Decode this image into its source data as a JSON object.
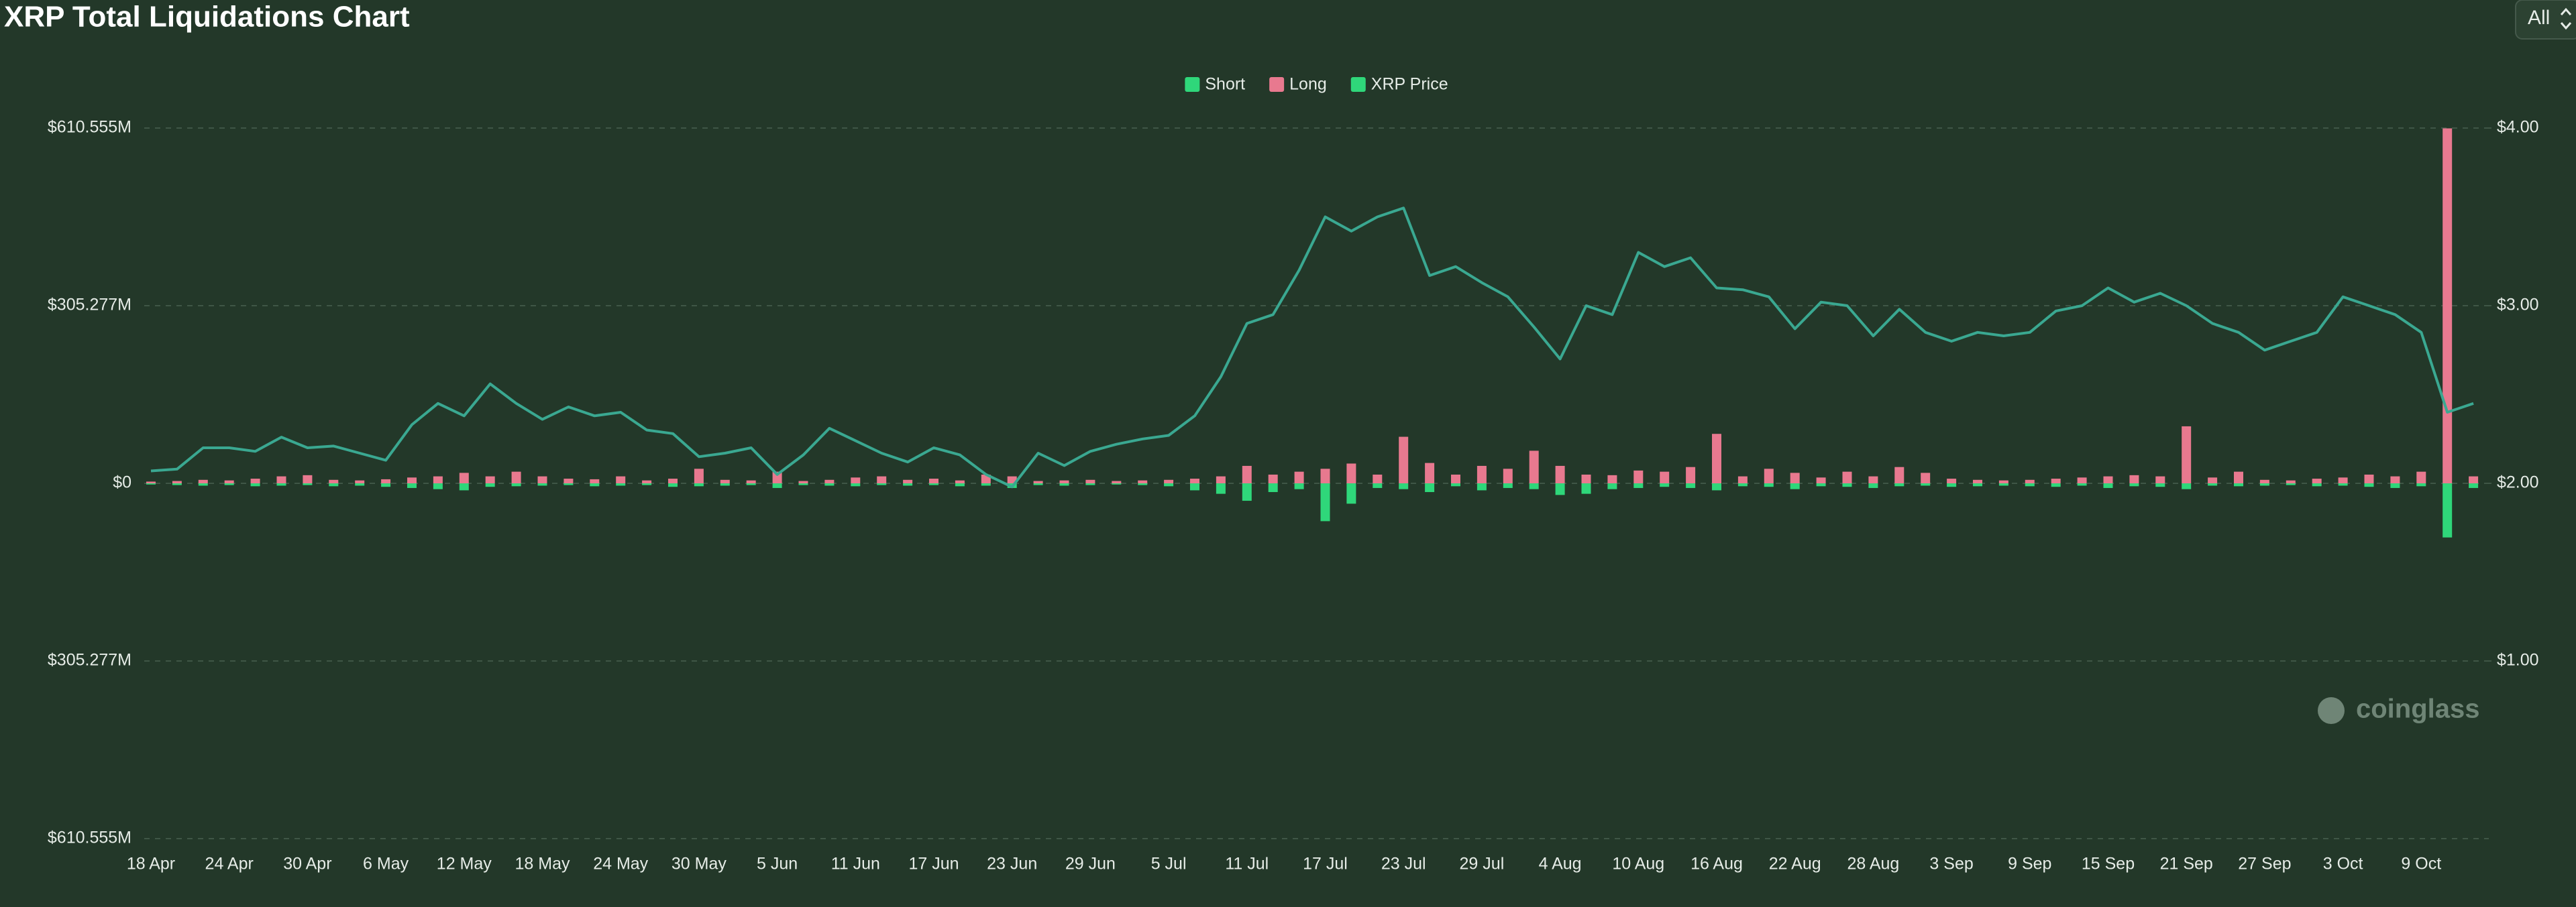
{
  "chart_data": {
    "type": "bar-line",
    "title": "XRP Total Liquidations Chart",
    "range_selector": "All",
    "watermark": "coinglass",
    "categories": [
      "18 Apr",
      null,
      null,
      "24 Apr",
      null,
      null,
      "30 Apr",
      null,
      null,
      "6 May",
      null,
      null,
      "12 May",
      null,
      null,
      "18 May",
      null,
      null,
      "24 May",
      null,
      null,
      "30 May",
      null,
      null,
      "5 Jun",
      null,
      null,
      "11 Jun",
      null,
      null,
      "17 Jun",
      null,
      null,
      "23 Jun",
      null,
      null,
      "29 Jun",
      null,
      null,
      "5 Jul",
      null,
      null,
      "11 Jul",
      null,
      null,
      "17 Jul",
      null,
      null,
      "23 Jul",
      null,
      null,
      "29 Jul",
      null,
      null,
      "4 Aug",
      null,
      null,
      "10 Aug",
      null,
      null,
      "16 Aug",
      null,
      null,
      "22 Aug",
      null,
      null,
      "28 Aug",
      null,
      null,
      "3 Sep",
      null,
      null,
      "9 Sep",
      null,
      null,
      "15 Sep",
      null,
      null,
      "21 Sep",
      null,
      null,
      "27 Sep",
      null,
      null,
      "3 Oct",
      null,
      null,
      "9 Oct",
      null,
      null
    ],
    "series": [
      {
        "name": "Short",
        "type": "bar",
        "color": "#2fd77a",
        "values": [
          -2,
          -3,
          -4,
          -3,
          -5,
          -4,
          -3,
          -5,
          -4,
          -6,
          -8,
          -10,
          -12,
          -6,
          -5,
          -4,
          -3,
          -5,
          -4,
          -3,
          -6,
          -5,
          -4,
          -3,
          -8,
          -3,
          -4,
          -5,
          -3,
          -4,
          -3,
          -5,
          -4,
          -8,
          -3,
          -4,
          -3,
          -2,
          -3,
          -5,
          -12,
          -18,
          -30,
          -15,
          -10,
          -65,
          -35,
          -8,
          -10,
          -15,
          -5,
          -12,
          -8,
          -10,
          -20,
          -18,
          -10,
          -8,
          -6,
          -8,
          -12,
          -5,
          -6,
          -10,
          -5,
          -6,
          -8,
          -5,
          -4,
          -6,
          -5,
          -4,
          -5,
          -6,
          -4,
          -8,
          -5,
          -6,
          -10,
          -4,
          -5,
          -4,
          -3,
          -5,
          -4,
          -6,
          -8,
          -5,
          -93,
          -8
        ]
      },
      {
        "name": "Long",
        "type": "bar",
        "color": "#e8798f",
        "values": [
          3,
          4,
          6,
          5,
          8,
          12,
          14,
          6,
          5,
          7,
          10,
          12,
          18,
          12,
          20,
          12,
          8,
          7,
          12,
          5,
          8,
          25,
          6,
          5,
          20,
          4,
          6,
          10,
          12,
          6,
          8,
          5,
          15,
          12,
          4,
          5,
          6,
          4,
          5,
          6,
          8,
          12,
          30,
          15,
          20,
          25,
          34,
          15,
          80,
          35,
          15,
          30,
          25,
          56,
          30,
          15,
          14,
          22,
          20,
          28,
          85,
          12,
          25,
          18,
          10,
          20,
          12,
          28,
          18,
          8,
          6,
          5,
          6,
          8,
          10,
          12,
          14,
          12,
          98,
          10,
          20,
          6,
          5,
          8,
          10,
          15,
          12,
          20,
          610,
          12
        ]
      },
      {
        "name": "XRP Price",
        "type": "line",
        "axis": "y2",
        "color": "#3aa891",
        "legend_color": "#2fd77a",
        "values": [
          2.07,
          2.08,
          2.2,
          2.2,
          2.18,
          2.26,
          2.2,
          2.21,
          2.17,
          2.13,
          2.33,
          2.45,
          2.38,
          2.56,
          2.45,
          2.36,
          2.43,
          2.38,
          2.4,
          2.3,
          2.28,
          2.15,
          2.17,
          2.2,
          2.05,
          2.16,
          2.31,
          2.24,
          2.17,
          2.12,
          2.2,
          2.16,
          2.05,
          1.98,
          2.17,
          2.1,
          2.18,
          2.22,
          2.25,
          2.27,
          2.38,
          2.6,
          2.9,
          2.95,
          3.2,
          3.5,
          3.42,
          3.5,
          3.55,
          3.17,
          3.22,
          3.13,
          3.05,
          2.88,
          2.7,
          3.0,
          2.95,
          3.3,
          3.22,
          3.27,
          3.1,
          3.09,
          3.05,
          2.87,
          3.02,
          3.0,
          2.83,
          2.98,
          2.85,
          2.8,
          2.85,
          2.83,
          2.85,
          2.97,
          3.0,
          3.1,
          3.02,
          3.07,
          3.0,
          2.9,
          2.85,
          2.75,
          2.8,
          2.85,
          3.05,
          3.0,
          2.95,
          2.85,
          2.4,
          2.45
        ]
      }
    ],
    "ylim": [
      -610.555,
      610.555
    ],
    "yticks": [
      {
        "value": -610.555,
        "label": "$610.555M"
      },
      {
        "value": -305.277,
        "label": "$305.277M"
      },
      {
        "value": 0,
        "label": "$0"
      },
      {
        "value": 305.277,
        "label": "$305.277M"
      },
      {
        "value": 610.555,
        "label": "$610.555M"
      }
    ],
    "y2lim": [
      0,
      4
    ],
    "y2ticks": [
      {
        "value": 1,
        "label": "$1.00"
      },
      {
        "value": 2,
        "label": "$2.00"
      },
      {
        "value": 3,
        "label": "$3.00"
      },
      {
        "value": 4,
        "label": "$4.00"
      }
    ],
    "grid": true,
    "legend": "top"
  }
}
